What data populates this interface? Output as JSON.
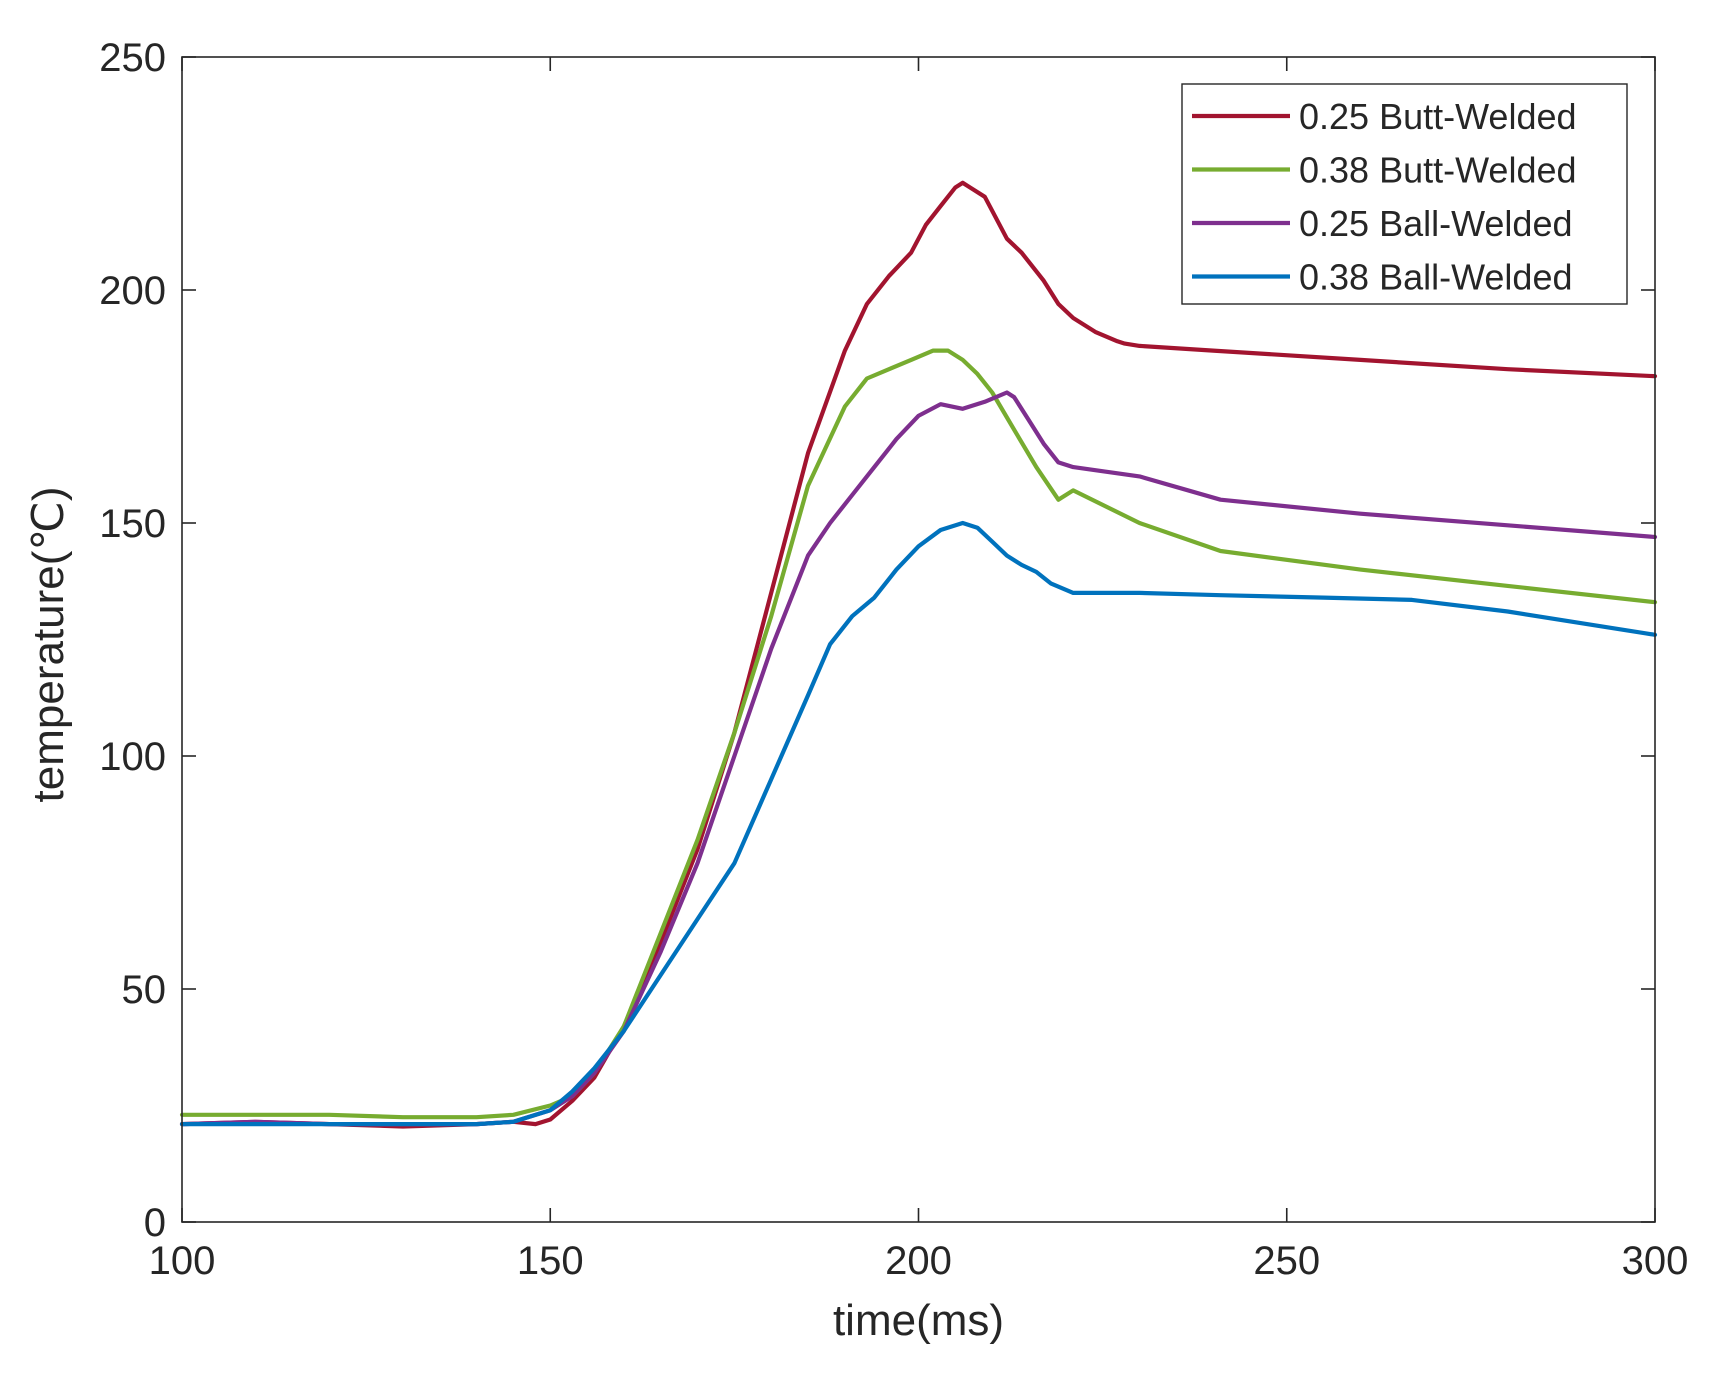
{
  "chart_data": {
    "type": "line",
    "title": "",
    "xlabel": "time(ms)",
    "ylabel": "temperature(℃)",
    "xlim": [
      100,
      300
    ],
    "ylim": [
      0,
      250
    ],
    "xticks": [
      100,
      150,
      200,
      250,
      300
    ],
    "yticks": [
      0,
      50,
      100,
      150,
      200,
      250
    ],
    "xtick_labels": [
      "100",
      "150",
      "200",
      "250",
      "300"
    ],
    "ytick_labels": [
      "0",
      "50",
      "100",
      "150",
      "200",
      "250"
    ],
    "grid": false,
    "legend_position": "top-right",
    "series": [
      {
        "name": "0.25 Butt-Welded",
        "color": "#a2142f",
        "x": [
          100,
          110,
          120,
          130,
          140,
          145,
          148,
          150,
          153,
          156,
          160,
          165,
          170,
          175,
          180,
          185,
          190,
          193,
          196,
          199,
          201,
          203,
          205,
          206,
          207,
          209,
          210,
          212,
          214,
          217,
          219,
          221,
          224,
          227,
          228,
          230,
          240,
          260,
          280,
          300
        ],
        "y": [
          21,
          21.5,
          21,
          20.5,
          21,
          21.5,
          21,
          22,
          26,
          31,
          42,
          60,
          80,
          105,
          135,
          165,
          187,
          197,
          203,
          208,
          214,
          218,
          222,
          223,
          222,
          220,
          217,
          211,
          208,
          202,
          197,
          194,
          191,
          189,
          188.5,
          188,
          187,
          185,
          183,
          181.5
        ]
      },
      {
        "name": "0.38 Butt-Welded",
        "color": "#77ac30",
        "x": [
          100,
          110,
          120,
          130,
          140,
          145,
          150,
          153,
          156,
          160,
          165,
          170,
          175,
          180,
          185,
          190,
          193,
          196,
          199,
          202,
          204,
          206,
          208,
          210,
          213,
          216,
          219,
          221,
          230,
          241,
          260,
          280,
          300
        ],
        "y": [
          23,
          23,
          23,
          22.5,
          22.5,
          23,
          25,
          27,
          32,
          42,
          62,
          82,
          105,
          130,
          158,
          175,
          181,
          183,
          185,
          187,
          187,
          185,
          182,
          178,
          170,
          162,
          155,
          157,
          150,
          144,
          140,
          136.5,
          133
        ]
      },
      {
        "name": "0.25 Ball-Welded",
        "color": "#7e2f8e",
        "x": [
          100,
          110,
          120,
          130,
          140,
          145,
          150,
          153,
          156,
          160,
          165,
          170,
          175,
          180,
          185,
          188,
          191,
          194,
          197,
          200,
          203,
          206,
          209,
          212,
          213,
          215,
          217,
          219,
          221,
          230,
          241,
          260,
          280,
          300
        ],
        "y": [
          21,
          21.5,
          21,
          21,
          21,
          21.5,
          24,
          27,
          32,
          41,
          58,
          77,
          100,
          123,
          143,
          150,
          156,
          162,
          168,
          173,
          175.5,
          174.5,
          176,
          178,
          177,
          172,
          167,
          163,
          162,
          160,
          155,
          152,
          149.5,
          147
        ]
      },
      {
        "name": "0.38 Ball-Welded",
        "color": "#0072bd",
        "x": [
          100,
          110,
          120,
          130,
          140,
          145,
          150,
          153,
          156,
          160,
          165,
          170,
          175,
          180,
          185,
          188,
          191,
          194,
          197,
          200,
          203,
          206,
          208,
          210,
          212,
          214,
          216,
          218,
          221,
          230,
          241,
          255,
          267,
          280,
          300
        ],
        "y": [
          21,
          21,
          21,
          21,
          21,
          21.5,
          24,
          28,
          33,
          41,
          53,
          65,
          77,
          95,
          113,
          124,
          130,
          134,
          140,
          145,
          148.5,
          150,
          149,
          146,
          143,
          141,
          139.5,
          137,
          135,
          135,
          134.5,
          134,
          133.5,
          131,
          126
        ]
      }
    ]
  }
}
